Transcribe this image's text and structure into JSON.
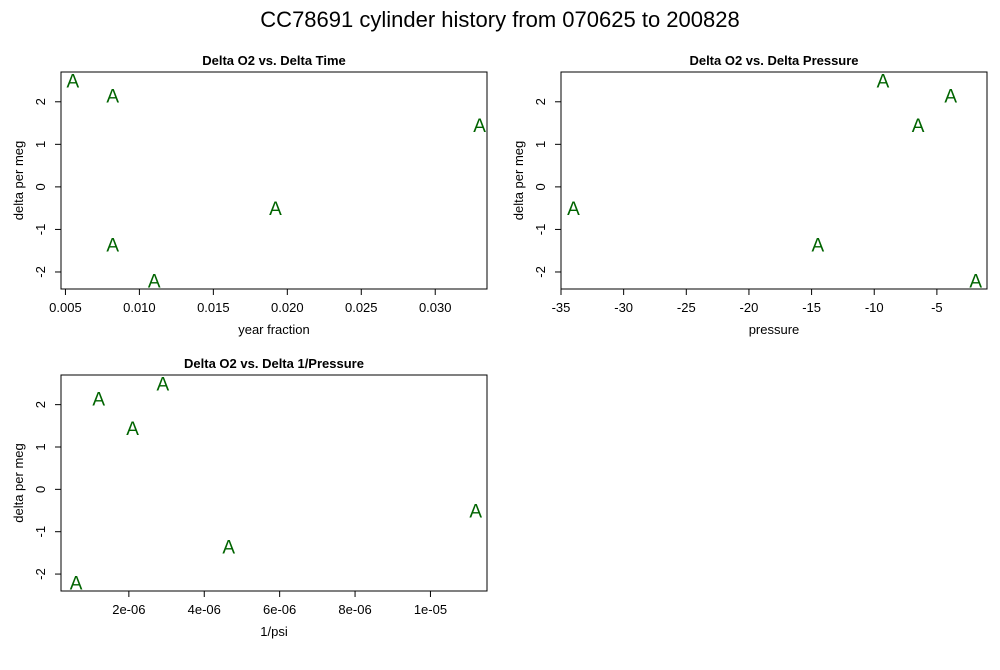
{
  "title": "CC78691   cylinder history from  070625  to  200828",
  "colors": {
    "points": "#006400",
    "axes": "#000000",
    "background": "#ffffff"
  },
  "chart_data": [
    {
      "type": "scatter",
      "title": "Delta O2 vs. Delta Time",
      "xlabel": "year fraction",
      "ylabel": "delta per meg",
      "marker": "A",
      "xlim": [
        0.0047,
        0.0335
      ],
      "ylim": [
        -2.4,
        2.7
      ],
      "xticks": [
        0.005,
        0.01,
        0.015,
        0.02,
        0.025,
        0.03
      ],
      "xtick_labels": [
        "0.005",
        "0.010",
        "0.015",
        "0.020",
        "0.025",
        "0.030"
      ],
      "yticks": [
        -2,
        -1,
        0,
        1,
        2
      ],
      "ytick_labels": [
        "-2",
        "-1",
        "0",
        "1",
        "2"
      ],
      "points": [
        {
          "x": 0.0055,
          "y": 2.5
        },
        {
          "x": 0.0082,
          "y": 2.15
        },
        {
          "x": 0.0082,
          "y": -1.35
        },
        {
          "x": 0.011,
          "y": -2.2
        },
        {
          "x": 0.0192,
          "y": -0.5
        },
        {
          "x": 0.033,
          "y": 1.45
        }
      ]
    },
    {
      "type": "scatter",
      "title": "Delta O2 vs. Delta Pressure",
      "xlabel": "pressure",
      "ylabel": "delta per meg",
      "marker": "A",
      "xlim": [
        -35.0,
        -1.0
      ],
      "ylim": [
        -2.4,
        2.7
      ],
      "xticks": [
        -35,
        -30,
        -25,
        -20,
        -15,
        -10,
        -5
      ],
      "xtick_labels": [
        "-35",
        "-30",
        "-25",
        "-20",
        "-15",
        "-10",
        "-5"
      ],
      "yticks": [
        -2,
        -1,
        0,
        1,
        2
      ],
      "ytick_labels": [
        "-2",
        "-1",
        "0",
        "1",
        "2"
      ],
      "points": [
        {
          "x": -34.0,
          "y": -0.5
        },
        {
          "x": -14.5,
          "y": -1.35
        },
        {
          "x": -9.3,
          "y": 2.5
        },
        {
          "x": -6.5,
          "y": 1.45
        },
        {
          "x": -3.9,
          "y": 2.15
        },
        {
          "x": -1.9,
          "y": -2.2
        }
      ]
    },
    {
      "type": "scatter",
      "title": "Delta O2 vs. Delta 1/Pressure",
      "xlabel": "1/psi",
      "ylabel": "delta per meg",
      "marker": "A",
      "xlim": [
        2e-07,
        1.15e-05
      ],
      "ylim": [
        -2.4,
        2.7
      ],
      "xticks": [
        2e-06,
        4e-06,
        6e-06,
        8e-06,
        1e-05
      ],
      "xtick_labels": [
        "2e-06",
        "4e-06",
        "6e-06",
        "8e-06",
        "1e-05"
      ],
      "yticks": [
        -2,
        -1,
        0,
        1,
        2
      ],
      "ytick_labels": [
        "-2",
        "-1",
        "0",
        "1",
        "2"
      ],
      "points": [
        {
          "x": 6e-07,
          "y": -2.2
        },
        {
          "x": 1.2e-06,
          "y": 2.15
        },
        {
          "x": 2.1e-06,
          "y": 1.45
        },
        {
          "x": 2.9e-06,
          "y": 2.5
        },
        {
          "x": 4.65e-06,
          "y": -1.35
        },
        {
          "x": 1.12e-05,
          "y": -0.5
        }
      ]
    }
  ]
}
